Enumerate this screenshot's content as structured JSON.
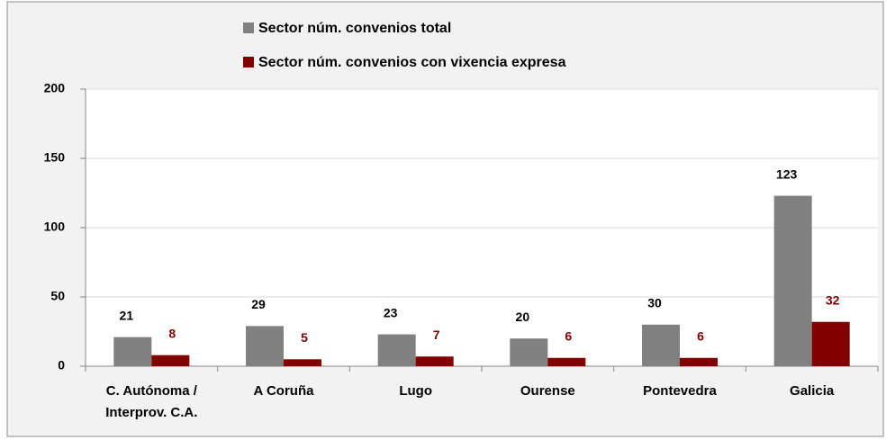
{
  "chart_data": {
    "type": "bar",
    "categories": [
      "C. Autónoma / Interprov. C.A.",
      "A Coruña",
      "Lugo",
      "Ourense",
      "Pontevedra",
      "Galicia"
    ],
    "series": [
      {
        "name": "Sector núm. convenios total",
        "color": "#808080",
        "label_color": "#000000",
        "values": [
          21,
          29,
          23,
          20,
          30,
          123
        ]
      },
      {
        "name": "Sector núm. convenios con vixencia expresa",
        "color": "#800000",
        "label_color": "#800000",
        "values": [
          8,
          5,
          7,
          6,
          6,
          32
        ]
      }
    ],
    "ylim": [
      0,
      200
    ],
    "yticks": [
      0,
      50,
      100,
      150,
      200
    ],
    "grid": true
  }
}
